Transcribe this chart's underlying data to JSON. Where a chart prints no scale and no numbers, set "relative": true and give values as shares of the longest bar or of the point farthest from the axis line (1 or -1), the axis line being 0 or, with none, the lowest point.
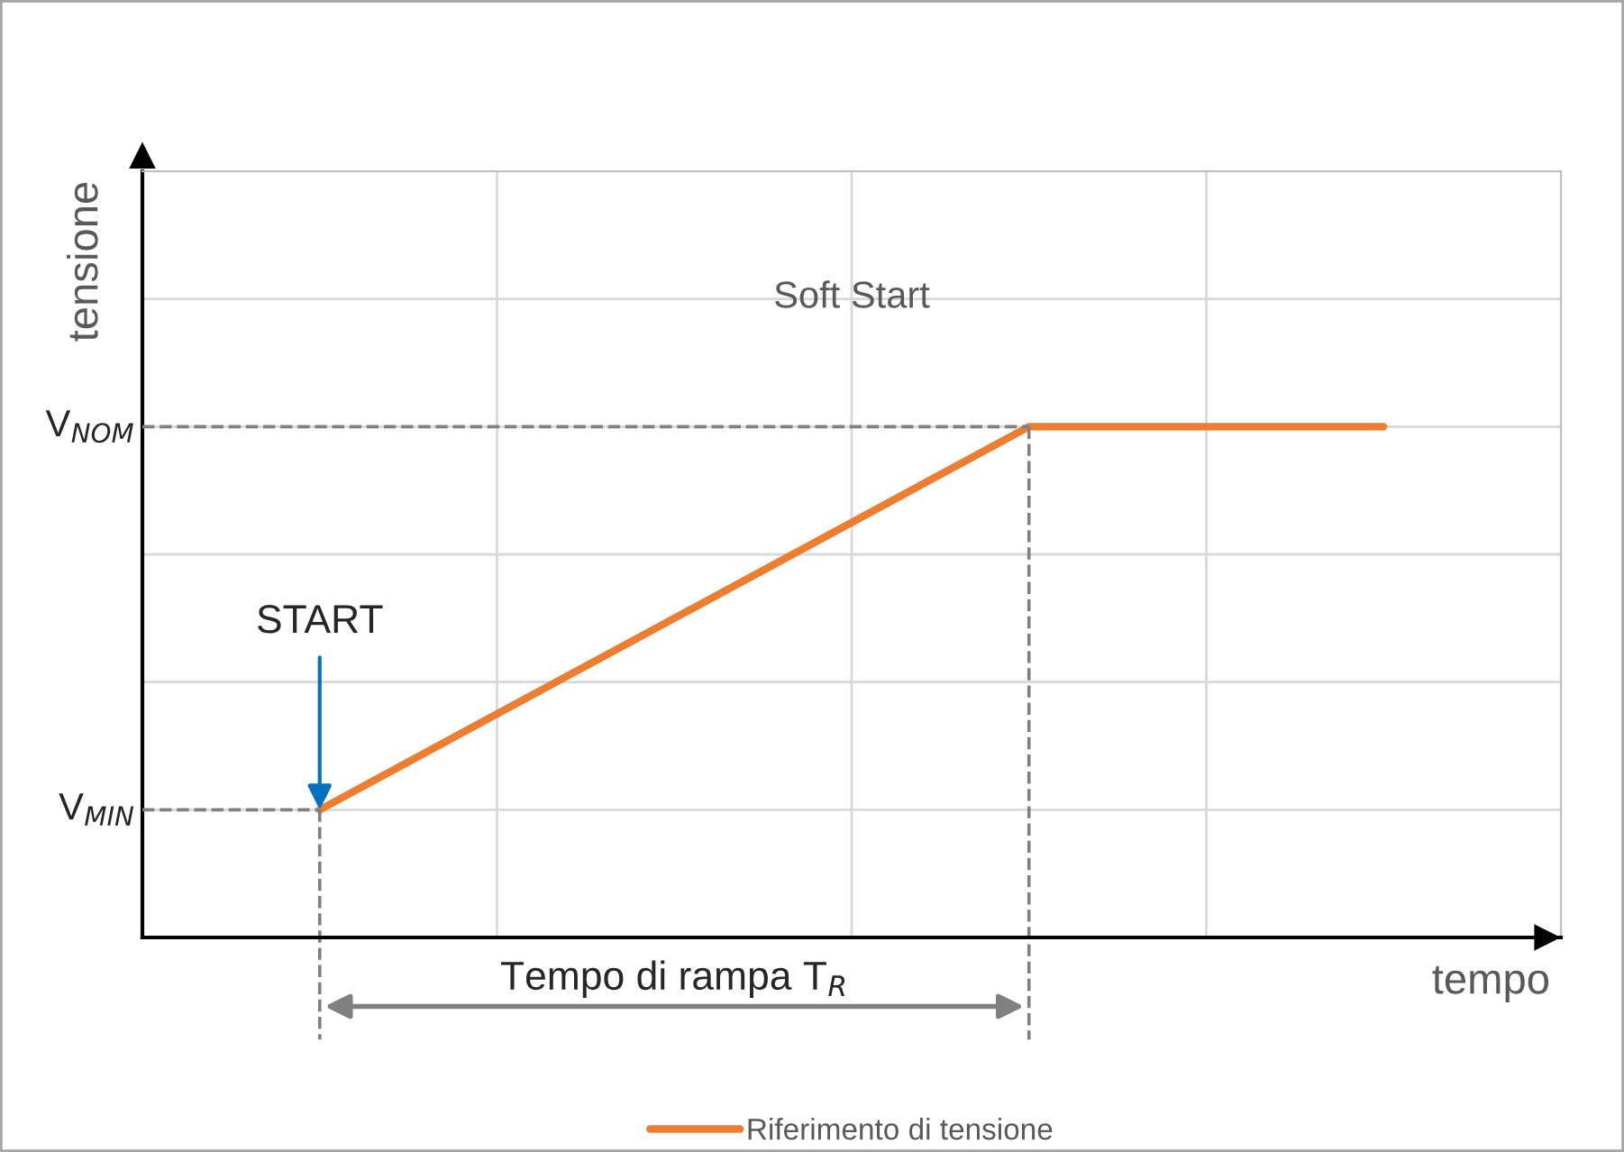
{
  "chart_data": {
    "type": "line",
    "title": "Soft Start",
    "xlabel": "tempo",
    "ylabel": "tensione",
    "categories": [
      null,
      null,
      null,
      null
    ],
    "relative": true,
    "series": [
      {
        "name": "Riferimento di tensione",
        "color": "#ed7d31",
        "values": [
          0.25,
          0.625,
          1,
          1
        ]
      }
    ],
    "ref_lines": [
      {
        "axis": "y",
        "value": 1,
        "label": "V$_{NOM}$",
        "color": "#808080",
        "line_style": "dashed"
      },
      {
        "axis": "y",
        "value": 0.25,
        "label": "V$_{MIN}$",
        "color": "#808080",
        "line_style": "dashed"
      }
    ],
    "annotations": [
      {
        "text": "START",
        "y": 0.25
      },
      "Tempo di rampa T$_{R}$"
    ],
    "grid": true,
    "legend": "bottom",
    "marker": "none",
    "line_style": "solid"
  }
}
